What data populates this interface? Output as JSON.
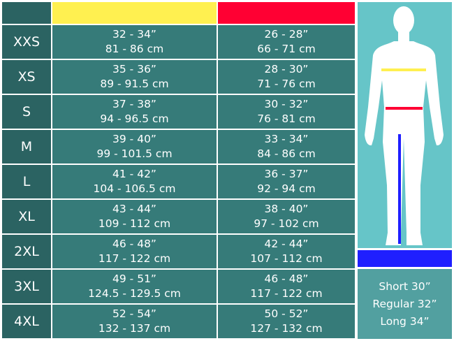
{
  "colors": {
    "chest": "#fff050",
    "waist": "#ff0033",
    "inseam": "#1f1fff"
  },
  "header": {
    "chest_color": "#fff050",
    "waist_color": "#ff0033"
  },
  "rows": [
    {
      "size": "XXS",
      "chest_in": "32 - 34”",
      "chest_cm": "81 - 86 cm",
      "waist_in": "26 - 28”",
      "waist_cm": "66 - 71 cm"
    },
    {
      "size": "XS",
      "chest_in": "35 - 36”",
      "chest_cm": "89 - 91.5 cm",
      "waist_in": "28 - 30”",
      "waist_cm": "71 - 76 cm"
    },
    {
      "size": "S",
      "chest_in": "37 - 38”",
      "chest_cm": "94 - 96.5 cm",
      "waist_in": "30 - 32”",
      "waist_cm": "76 - 81 cm"
    },
    {
      "size": "M",
      "chest_in": "39 - 40”",
      "chest_cm": "99 - 101.5 cm",
      "waist_in": "33 - 34”",
      "waist_cm": "84 - 86 cm"
    },
    {
      "size": "L",
      "chest_in": "41 - 42”",
      "chest_cm": "104 - 106.5 cm",
      "waist_in": "36 - 37”",
      "waist_cm": "92 - 94 cm"
    },
    {
      "size": "XL",
      "chest_in": "43 - 44”",
      "chest_cm": "109 - 112 cm",
      "waist_in": "38 - 40”",
      "waist_cm": "97 - 102 cm"
    },
    {
      "size": "2XL",
      "chest_in": "46 - 48”",
      "chest_cm": "117 - 122 cm",
      "waist_in": "42 - 44”",
      "waist_cm": "107 - 112 cm"
    },
    {
      "size": "3XL",
      "chest_in": "49 - 51”",
      "chest_cm": "124.5 - 129.5 cm",
      "waist_in": "46 - 48”",
      "waist_cm": "117 - 122 cm"
    },
    {
      "size": "4XL",
      "chest_in": "52 - 54”",
      "chest_cm": "132 - 137 cm",
      "waist_in": "50 - 52”",
      "waist_cm": "127 - 132 cm"
    }
  ],
  "lengths": [
    "Short 30”",
    "Regular 32”",
    "Long 34”"
  ]
}
